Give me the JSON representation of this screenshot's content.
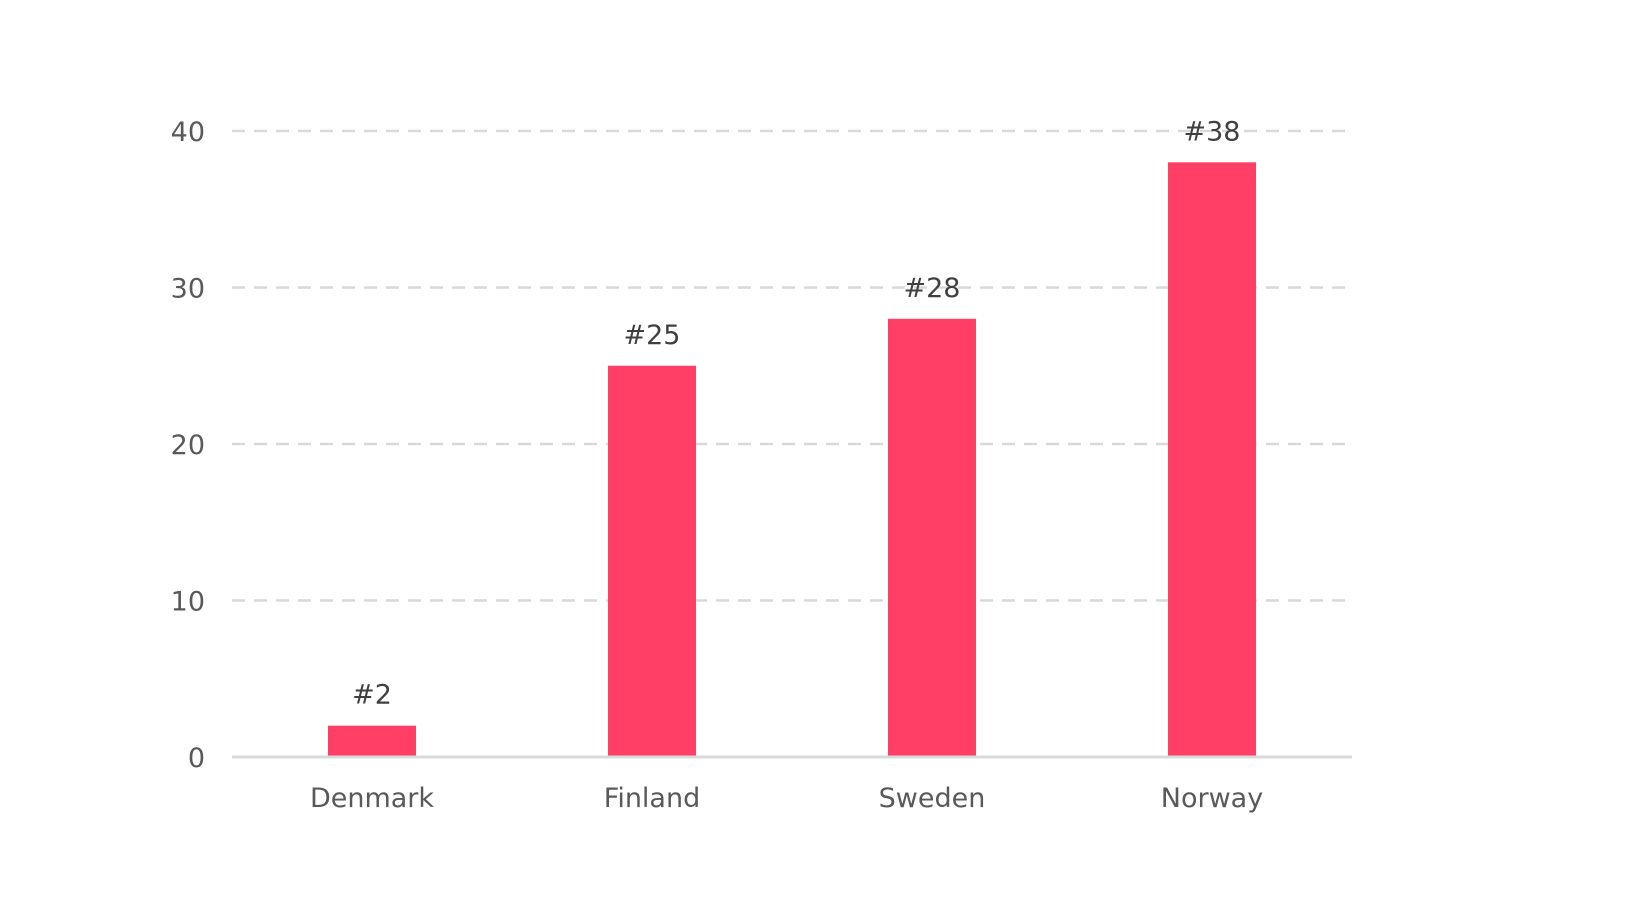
{
  "chart_data": {
    "type": "bar",
    "title": "",
    "xlabel": "",
    "ylabel": "",
    "categories": [
      "Denmark",
      "Finland",
      "Sweden",
      "Norway"
    ],
    "values": [
      2,
      25,
      28,
      38
    ],
    "data_labels": [
      "#2",
      "#25",
      "#28",
      "#38"
    ],
    "ylim": [
      0,
      40
    ],
    "y_ticks": [
      0,
      10,
      20,
      30,
      40
    ],
    "grid": true,
    "grid_style": "dashed",
    "legend": "none",
    "colors": {
      "bar": "#FF3F66",
      "grid": "#D9D9D9",
      "axis": "#D9D9D9"
    }
  }
}
